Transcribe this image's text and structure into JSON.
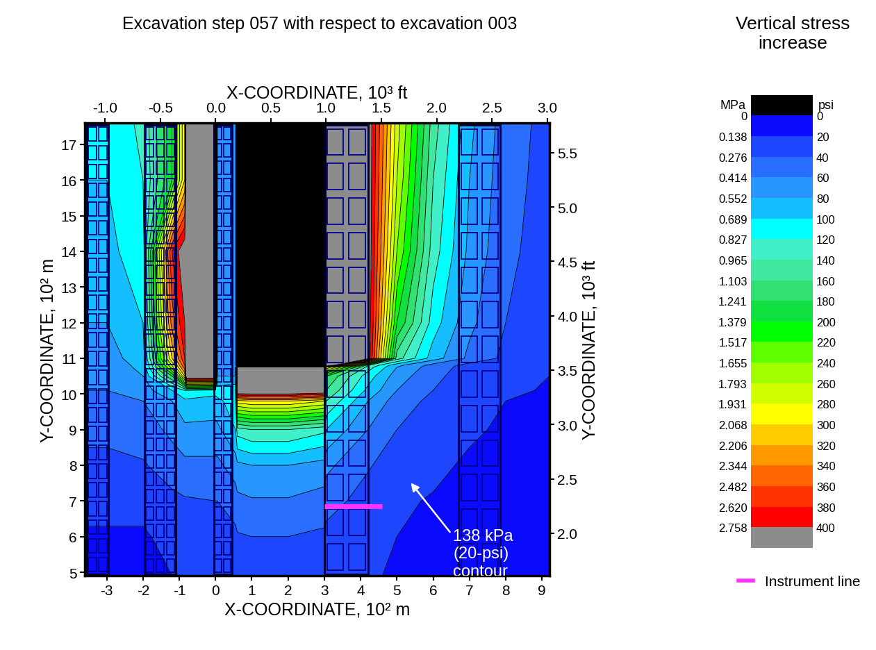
{
  "chart_data": {
    "type": "contour",
    "title": "Excavation step 057 with respect to excavation 003",
    "xlabel": "X-COORDINATE, 10² m",
    "ylabel": "Y-COORDINATE, 10² m",
    "x2label": "X-COORDINATE, 10³ ft",
    "y2label": "Y-COORDINATE, 10³ ft",
    "xlim": [
      -3.6,
      9.2
    ],
    "xticks": [
      -3,
      -2,
      -1,
      0,
      1,
      2,
      3,
      4,
      5,
      6,
      7,
      8,
      9
    ],
    "ylim": [
      4.9,
      17.6
    ],
    "yticks": [
      5,
      6,
      7,
      8,
      9,
      10,
      11,
      12,
      13,
      14,
      15,
      16,
      17
    ],
    "x2lim": [
      -1.1811,
      3.0184
    ],
    "x2ticks": [
      -1.0,
      -0.5,
      0.0,
      0.5,
      1.0,
      1.5,
      2.0,
      2.5,
      3.0
    ],
    "y2lim": [
      1.6076,
      5.7743
    ],
    "y2ticks": [
      2.0,
      2.5,
      3.0,
      3.5,
      4.0,
      4.5,
      5.0,
      5.5
    ],
    "field": {
      "x": [
        -3.6,
        -3,
        -2,
        -1.2,
        -0.85,
        -0.8,
        0,
        0.05,
        0.55,
        0.6,
        1,
        2,
        3.0,
        3.05,
        4.2,
        5,
        6,
        7,
        8,
        9.2
      ],
      "y": [
        4.9,
        6,
        7,
        8,
        9,
        9.8,
        10.1,
        10.5,
        10.75,
        10.8,
        11,
        12,
        14,
        16,
        17.6
      ],
      "values": [
        [
          15,
          15,
          15,
          20,
          22,
          22,
          25,
          25,
          28,
          30,
          32,
          32,
          30,
          28,
          22,
          18,
          15,
          14,
          14,
          14
        ],
        [
          18,
          18,
          18,
          25,
          28,
          28,
          30,
          30,
          35,
          38,
          40,
          40,
          36,
          34,
          26,
          20,
          17,
          15,
          15,
          15
        ],
        [
          25,
          25,
          25,
          35,
          38,
          38,
          40,
          40,
          50,
          55,
          58,
          58,
          52,
          48,
          32,
          22,
          19,
          16,
          15,
          15
        ],
        [
          35,
          35,
          38,
          50,
          55,
          55,
          55,
          55,
          70,
          75,
          80,
          80,
          72,
          65,
          42,
          30,
          23,
          18,
          16,
          16
        ],
        [
          45,
          45,
          50,
          65,
          75,
          75,
          75,
          75,
          100,
          130,
          140,
          140,
          125,
          100,
          60,
          40,
          30,
          22,
          18,
          17
        ],
        [
          55,
          55,
          60,
          80,
          95,
          95,
          90,
          95,
          110,
          290,
          300,
          300,
          280,
          140,
          80,
          50,
          35,
          25,
          20,
          18
        ],
        [
          60,
          60,
          70,
          100,
          120,
          120,
          110,
          110,
          115,
          450,
          450,
          450,
          440,
          160,
          95,
          60,
          40,
          28,
          22,
          19
        ],
        [
          65,
          65,
          80,
          180,
          300,
          450,
          450,
          80,
          80,
          450,
          450,
          450,
          440,
          180,
          110,
          70,
          45,
          30,
          23,
          20
        ],
        [
          68,
          68,
          85,
          250,
          350,
          450,
          450,
          70,
          70,
          450,
          450,
          450,
          440,
          300,
          130,
          80,
          50,
          32,
          24,
          21
        ],
        [
          70,
          70,
          85,
          260,
          360,
          450,
          450,
          70,
          70,
          -50,
          -50,
          -50,
          -50,
          450,
          140,
          85,
          52,
          33,
          25,
          21
        ],
        [
          72,
          72,
          90,
          300,
          380,
          450,
          450,
          70,
          70,
          -50,
          -50,
          -50,
          -50,
          450,
          420,
          150,
          90,
          55,
          35,
          26
        ],
        [
          80,
          80,
          100,
          350,
          400,
          450,
          450,
          70,
          70,
          -50,
          -50,
          -50,
          -50,
          450,
          420,
          200,
          110,
          65,
          40,
          28
        ],
        [
          95,
          95,
          110,
          380,
          420,
          450,
          450,
          70,
          70,
          -50,
          -50,
          -50,
          -50,
          450,
          420,
          240,
          130,
          75,
          45,
          30
        ],
        [
          100,
          100,
          120,
          200,
          300,
          450,
          450,
          70,
          70,
          -50,
          -50,
          -50,
          -50,
          450,
          420,
          260,
          140,
          80,
          48,
          32
        ],
        [
          105,
          105,
          125,
          200,
          300,
          450,
          450,
          70,
          70,
          -50,
          -50,
          -50,
          -50,
          450,
          420,
          270,
          150,
          85,
          50,
          33
        ]
      ]
    },
    "colorbar": {
      "title": "Vertical stress increase",
      "left_label": "MPa",
      "right_label": "psi",
      "levels": [
        0,
        20,
        40,
        60,
        80,
        100,
        120,
        140,
        160,
        180,
        200,
        220,
        240,
        260,
        280,
        300,
        320,
        340,
        360,
        380,
        400
      ],
      "left_ticks": [
        {
          "value": 0,
          "label": "0"
        },
        {
          "value": 20,
          "label": "0.138"
        },
        {
          "value": 40,
          "label": "0.276"
        },
        {
          "value": 60,
          "label": "0.414"
        },
        {
          "value": 80,
          "label": "0.552"
        },
        {
          "value": 100,
          "label": "0.689"
        },
        {
          "value": 120,
          "label": "0.827"
        },
        {
          "value": 140,
          "label": "0.965"
        },
        {
          "value": 160,
          "label": "1.103"
        },
        {
          "value": 180,
          "label": "1.241"
        },
        {
          "value": 200,
          "label": "1.379"
        },
        {
          "value": 220,
          "label": "1.517"
        },
        {
          "value": 240,
          "label": "1.655"
        },
        {
          "value": 260,
          "label": "1.793"
        },
        {
          "value": 280,
          "label": "1.931"
        },
        {
          "value": 300,
          "label": "2.068"
        },
        {
          "value": 320,
          "label": "2.206"
        },
        {
          "value": 340,
          "label": "2.344"
        },
        {
          "value": 360,
          "label": "2.482"
        },
        {
          "value": 380,
          "label": "2.620"
        },
        {
          "value": 400,
          "label": "2.758"
        }
      ],
      "colors": [
        "#000000",
        "#0a0aff",
        "#1e46ff",
        "#2a6eff",
        "#2896ff",
        "#14beff",
        "#00ffff",
        "#40f0c8",
        "#40e8a0",
        "#30e070",
        "#10e040",
        "#00ff00",
        "#60ff00",
        "#a0ff00",
        "#d0ff00",
        "#ffff00",
        "#ffcc00",
        "#ff9900",
        "#ff6600",
        "#ff3300",
        "#ff0000",
        "#8c8c8c"
      ]
    },
    "panels": [
      {
        "x": [
          -3.55,
          -2.95
        ],
        "y": [
          4.95,
          17.55
        ],
        "columns": 2,
        "rows": 24
      },
      {
        "x": [
          -1.95,
          -1.1
        ],
        "y": [
          4.95,
          17.55
        ],
        "columns": 3,
        "rows": 26
      },
      {
        "x": [
          -0.05,
          0.45
        ],
        "y": [
          4.95,
          17.55
        ],
        "columns": 2,
        "rows": 26
      },
      {
        "x": [
          3.0,
          4.2
        ],
        "y": [
          4.95,
          17.55
        ],
        "columns": 2,
        "rows": 13
      },
      {
        "x": [
          6.7,
          7.85
        ],
        "y": [
          4.95,
          17.55
        ],
        "columns": 2,
        "rows": 13
      }
    ],
    "instrument_line": {
      "name": "Instrument line",
      "color": "#ff33ff",
      "x": [
        3.0,
        4.6
      ],
      "y": [
        6.85,
        6.85
      ]
    },
    "annotation": {
      "text": "138 kPa\n(20-psi)\ncontour",
      "xy": [
        5.35,
        7.55
      ]
    },
    "legend": "lower right"
  }
}
